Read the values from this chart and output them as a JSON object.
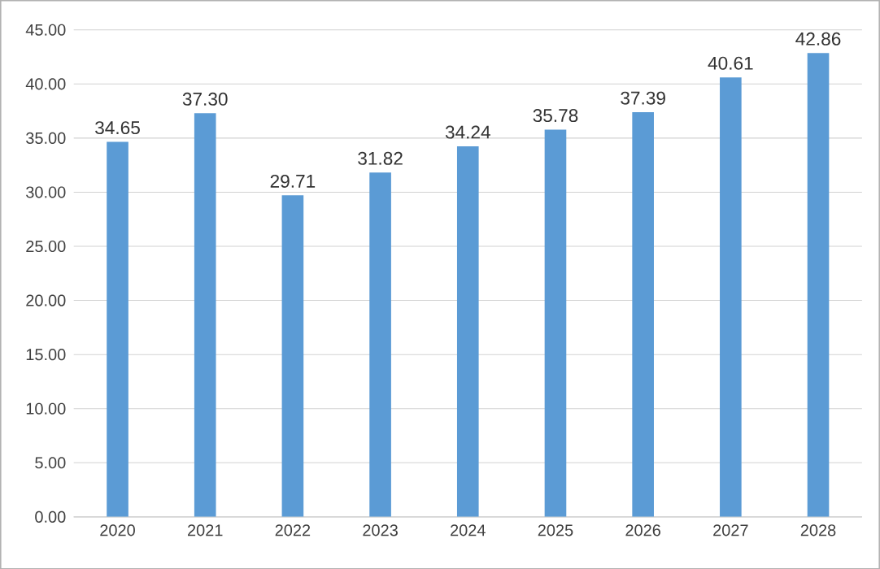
{
  "chart_data": {
    "type": "bar",
    "categories": [
      "2020",
      "2021",
      "2022",
      "2023",
      "2024",
      "2025",
      "2026",
      "2027",
      "2028"
    ],
    "values": [
      34.65,
      37.3,
      29.71,
      31.82,
      34.24,
      35.78,
      37.39,
      40.61,
      42.86
    ],
    "value_labels": [
      "34.65",
      "37.30",
      "29.71",
      "31.82",
      "34.24",
      "35.78",
      "37.39",
      "40.61",
      "42.86"
    ],
    "color": "#5b9bd5",
    "ylim": [
      0,
      45
    ],
    "yticks": [
      {
        "value": 0,
        "label": "0.00"
      },
      {
        "value": 5,
        "label": "5.00"
      },
      {
        "value": 10,
        "label": "10.00"
      },
      {
        "value": 15,
        "label": "15.00"
      },
      {
        "value": 20,
        "label": "20.00"
      },
      {
        "value": 25,
        "label": "25.00"
      },
      {
        "value": 30,
        "label": "30.00"
      },
      {
        "value": 35,
        "label": "35.00"
      },
      {
        "value": 40,
        "label": "40.00"
      },
      {
        "value": 45,
        "label": "45.00"
      }
    ],
    "grid": "y"
  }
}
